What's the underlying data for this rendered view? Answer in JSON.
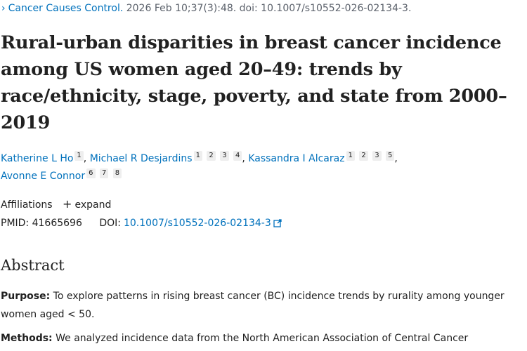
{
  "citation": {
    "chevron": "›",
    "journal": "Cancer Causes Control.",
    "details": " 2026 Feb 10;37(3):48. doi: 10.1007/s10552-026-02134-3."
  },
  "title": "Rural-urban disparities in breast cancer incidence among US women aged 20–49: trends by race/ethnicity, stage, poverty, and state from 2000–2019",
  "authors": [
    {
      "name": "Katherine L Ho",
      "sups": [
        "1"
      ]
    },
    {
      "name": "Michael R Desjardins",
      "sups": [
        "1",
        "2",
        "3",
        "4"
      ]
    },
    {
      "name": "Kassandra I Alcaraz",
      "sups": [
        "1",
        "2",
        "3",
        "5"
      ]
    },
    {
      "name": "Avonne E Connor",
      "sups": [
        "6",
        "7",
        "8"
      ]
    }
  ],
  "affiliations": {
    "label": "Affiliations",
    "expand_icon": "plus-icon",
    "expand_label": "expand"
  },
  "ids": {
    "pmid_label": "PMID:",
    "pmid": "41665696",
    "doi_label": "DOI:",
    "doi": "10.1007/s10552-026-02134-3",
    "doi_icon": "external-link-icon"
  },
  "abstract": {
    "heading": "Abstract",
    "purpose_label": "Purpose:",
    "purpose_text": " To explore patterns in rising breast cancer (BC) incidence trends by rurality among younger women aged < 50.",
    "methods_label": "Methods:",
    "methods_text": " We analyzed incidence data from the North American Association of Central Cancer"
  },
  "colors": {
    "link": "#0071bc",
    "text": "#212121",
    "muted": "#5b616b",
    "sup_bg": "#eeeeee"
  }
}
